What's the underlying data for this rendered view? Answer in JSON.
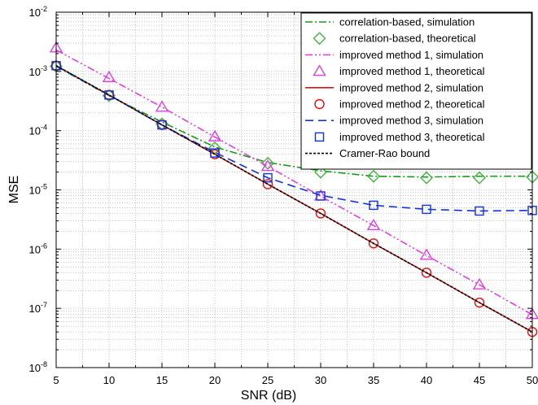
{
  "chart_data": {
    "type": "line",
    "xlabel": "SNR (dB)",
    "ylabel": "MSE",
    "xlim": [
      5,
      50
    ],
    "ylim_exponents": [
      -8,
      -2
    ],
    "yscale": "log",
    "grid": true,
    "legend_position": "top-right",
    "x_ticks": [
      "5",
      "10",
      "15",
      "20",
      "25",
      "30",
      "35",
      "40",
      "45",
      "50"
    ],
    "y_tick_labels": [
      {
        "base": "10",
        "exp": "-8"
      },
      {
        "base": "10",
        "exp": "-7"
      },
      {
        "base": "10",
        "exp": "-6"
      },
      {
        "base": "10",
        "exp": "-5"
      },
      {
        "base": "10",
        "exp": "-4"
      },
      {
        "base": "10",
        "exp": "-3"
      },
      {
        "base": "10",
        "exp": "-2"
      }
    ],
    "x": [
      5,
      10,
      15,
      20,
      25,
      30,
      35,
      40,
      45,
      50
    ],
    "series": [
      {
        "name": "correlation-based, simulation",
        "kind": "line",
        "color": "#1a9a1a",
        "dash": "9,3,2,3",
        "values": [
          0.00122,
          0.00039,
          0.00014,
          5.3e-05,
          2.9e-05,
          2.1e-05,
          1.7e-05,
          1.65e-05,
          1.7e-05,
          1.7e-05
        ]
      },
      {
        "name": "correlation-based, theoretical",
        "kind": "marker",
        "marker": "diamond",
        "color": "#3fb53f",
        "values": [
          0.00122,
          0.00039,
          0.00013,
          5.1e-05,
          2.8e-05,
          2e-05,
          1.7e-05,
          1.6e-05,
          1.6e-05,
          1.65e-05
        ]
      },
      {
        "name": "improved method 1, simulation",
        "kind": "line",
        "color": "#e040e0",
        "dash": "9,3,2,3,2,3",
        "values": [
          0.0023,
          0.00076,
          0.00025,
          7.8e-05,
          2.5e-05,
          7.8e-06,
          2.5e-06,
          7.8e-07,
          2.5e-07,
          7.8e-08
        ]
      },
      {
        "name": "improved method 1, theoretical",
        "kind": "marker",
        "marker": "triangle",
        "color": "#e040e0",
        "values": [
          0.0025,
          0.00079,
          0.00025,
          7.9e-05,
          2.5e-05,
          7.9e-06,
          2.5e-06,
          7.9e-07,
          2.5e-07,
          7.9e-08
        ]
      },
      {
        "name": "improved method 2, simulation",
        "kind": "line",
        "color": "#dd1111",
        "dash": "",
        "values": [
          0.00125,
          0.0004,
          0.000125,
          4e-05,
          1.25e-05,
          4e-06,
          1.25e-06,
          4e-07,
          1.25e-07,
          4e-08
        ]
      },
      {
        "name": "improved method 2, theoretical",
        "kind": "marker",
        "marker": "circle",
        "color": "#dd1111",
        "values": [
          0.00125,
          0.0004,
          0.000125,
          4e-05,
          1.25e-05,
          4e-06,
          1.25e-06,
          4e-07,
          1.25e-07,
          4e-08
        ]
      },
      {
        "name": "improved method 3, simulation",
        "kind": "line",
        "color": "#1133dd",
        "dash": "10,6",
        "values": [
          0.00125,
          0.0004,
          0.000125,
          4.3e-05,
          1.6e-05,
          8.1e-06,
          5.5e-06,
          4.7e-06,
          4.4e-06,
          4.5e-06
        ]
      },
      {
        "name": "improved method 3, theoretical",
        "kind": "marker",
        "marker": "square",
        "color": "#1133dd",
        "values": [
          0.00125,
          0.0004,
          0.000125,
          4.2e-05,
          1.6e-05,
          7.9e-06,
          5.5e-06,
          4.7e-06,
          4.4e-06,
          4.5e-06
        ]
      },
      {
        "name": "Cramer-Rao bound",
        "kind": "line",
        "color": "#000000",
        "dash": "3,2",
        "values": [
          0.00125,
          0.0004,
          0.000125,
          4e-05,
          1.25e-05,
          4e-06,
          1.25e-06,
          4e-07,
          1.25e-07,
          4e-08
        ]
      }
    ]
  }
}
